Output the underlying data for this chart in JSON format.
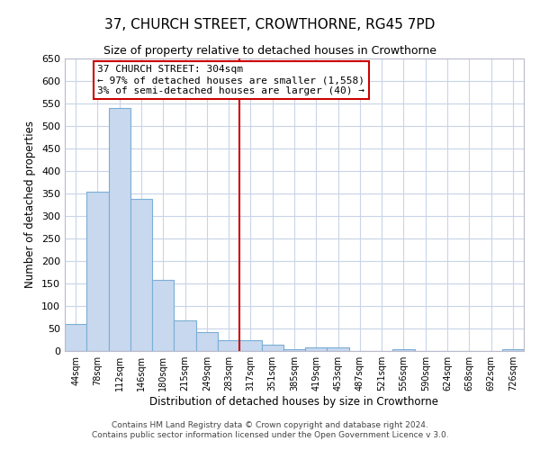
{
  "title": "37, CHURCH STREET, CROWTHORNE, RG45 7PD",
  "subtitle": "Size of property relative to detached houses in Crowthorne",
  "bar_labels": [
    "44sqm",
    "78sqm",
    "112sqm",
    "146sqm",
    "180sqm",
    "215sqm",
    "249sqm",
    "283sqm",
    "317sqm",
    "351sqm",
    "385sqm",
    "419sqm",
    "453sqm",
    "487sqm",
    "521sqm",
    "556sqm",
    "590sqm",
    "624sqm",
    "658sqm",
    "692sqm",
    "726sqm"
  ],
  "bar_values": [
    60,
    355,
    540,
    338,
    158,
    68,
    42,
    25,
    25,
    15,
    5,
    8,
    8,
    0,
    0,
    5,
    0,
    0,
    0,
    0,
    5
  ],
  "bar_color": "#c8d8ee",
  "bar_edge_color": "#7aaed6",
  "xlabel": "Distribution of detached houses by size in Crowthorne",
  "ylabel": "Number of detached properties",
  "ylim": [
    0,
    650
  ],
  "yticks": [
    0,
    50,
    100,
    150,
    200,
    250,
    300,
    350,
    400,
    450,
    500,
    550,
    600,
    650
  ],
  "vline_index": 8,
  "vline_color": "#cc0000",
  "annotation_title": "37 CHURCH STREET: 304sqm",
  "annotation_line1": "← 97% of detached houses are smaller (1,558)",
  "annotation_line2": "3% of semi-detached houses are larger (40) →",
  "footer1": "Contains HM Land Registry data © Crown copyright and database right 2024.",
  "footer2": "Contains public sector information licensed under the Open Government Licence v 3.0.",
  "background_color": "#ffffff",
  "grid_color": "#c8d4e8"
}
